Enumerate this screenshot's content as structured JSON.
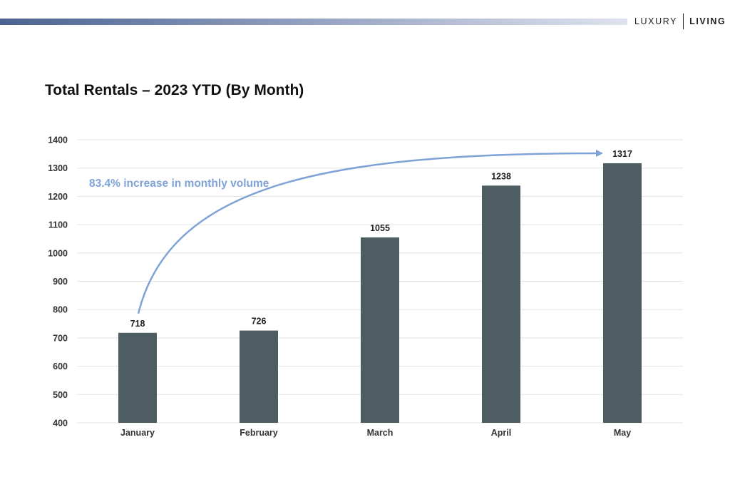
{
  "brand": {
    "left": "LUXURY",
    "right": "LIVING"
  },
  "colors": {
    "bar": "#4d5d62",
    "annotation": "#7fa3d6",
    "grid": "#e3e3e3",
    "axis_text": "#333333"
  },
  "chart_data": {
    "type": "bar",
    "title": "Total Rentals – 2023 YTD (By Month)",
    "xlabel": "",
    "ylabel": "",
    "categories": [
      "January",
      "February",
      "March",
      "April",
      "May"
    ],
    "values": [
      718,
      726,
      1055,
      1238,
      1317
    ],
    "data_labels": [
      "718",
      "726",
      "1055",
      "1238",
      "1317"
    ],
    "ylim": [
      400,
      1400
    ],
    "yticks": [
      400,
      500,
      600,
      700,
      800,
      900,
      1000,
      1100,
      1200,
      1300,
      1400
    ],
    "grid": true,
    "legend": "none",
    "annotation": {
      "text": "83.4% increase in monthly volume",
      "from_category": "January",
      "to_category": "May"
    }
  }
}
